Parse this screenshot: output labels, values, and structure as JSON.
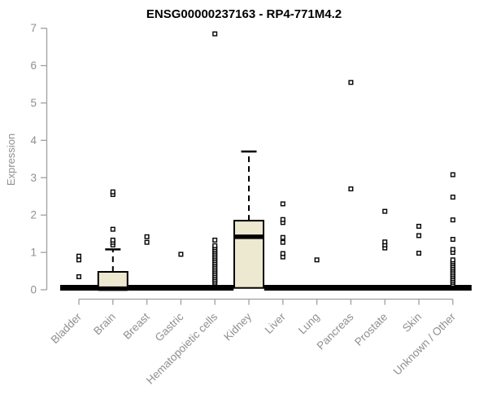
{
  "colors": {
    "box_fill": "#ede8d0",
    "box_stroke": "#000000",
    "axis_line": "#a0a0a0",
    "tick_text": "#8f8f8f",
    "title_text": "#000000",
    "outlier_fill": "#ffffff"
  },
  "chart_data": {
    "type": "boxplot",
    "title": "ENSG00000237163 - RP4-771M4.2",
    "xlabel": "",
    "ylabel": "Expression",
    "ylim": [
      0,
      7
    ],
    "yticks": [
      0,
      1,
      2,
      3,
      4,
      5,
      6,
      7
    ],
    "grid": false,
    "legend": null,
    "categories": [
      "Bladder",
      "Brain",
      "Breast",
      "Gastric",
      "Hematopoietic cells",
      "Kidney",
      "Liver",
      "Lung",
      "Pancreas",
      "Prostate",
      "Skin",
      "Unknown / Other"
    ],
    "boxes": [
      {
        "category": "Bladder",
        "q1": 0,
        "median": 0,
        "q3": 0,
        "whisker_low": 0,
        "whisker_high": 0,
        "outliers": [
          0.35,
          0.8,
          0.9
        ]
      },
      {
        "category": "Brain",
        "q1": 0,
        "median": 0.03,
        "q3": 0.48,
        "whisker_low": 0,
        "whisker_high": 1.08,
        "outliers": [
          1.2,
          1.27,
          1.33,
          1.62,
          2.55,
          2.62
        ]
      },
      {
        "category": "Breast",
        "q1": 0,
        "median": 0,
        "q3": 0,
        "whisker_low": 0,
        "whisker_high": 0,
        "outliers": [
          1.27,
          1.42
        ]
      },
      {
        "category": "Gastric",
        "q1": 0,
        "median": 0,
        "q3": 0,
        "whisker_low": 0,
        "whisker_high": 0,
        "outliers": [
          0.95
        ]
      },
      {
        "category": "Hematopoietic cells",
        "q1": 0,
        "median": 0,
        "q3": 0,
        "whisker_low": 0,
        "whisker_high": 0,
        "outliers": [
          0.18,
          0.23,
          0.28,
          0.33,
          0.38,
          0.43,
          0.48,
          0.53,
          0.58,
          0.63,
          0.68,
          0.73,
          0.78,
          0.83,
          0.88,
          0.93,
          0.98,
          1.03,
          1.08,
          1.13,
          1.18,
          1.33,
          6.85
        ]
      },
      {
        "category": "Kidney",
        "q1": 0.05,
        "median": 1.42,
        "q3": 1.85,
        "whisker_low": 0.05,
        "whisker_high": 3.7,
        "outliers": []
      },
      {
        "category": "Liver",
        "q1": 0,
        "median": 0,
        "q3": 0,
        "whisker_low": 0,
        "whisker_high": 0,
        "outliers": [
          0.88,
          0.97,
          1.27,
          1.4,
          1.8,
          1.88,
          2.3
        ]
      },
      {
        "category": "Lung",
        "q1": 0,
        "median": 0,
        "q3": 0,
        "whisker_low": 0,
        "whisker_high": 0,
        "outliers": [
          0.8
        ]
      },
      {
        "category": "Pancreas",
        "q1": 0,
        "median": 0,
        "q3": 0,
        "whisker_low": 0,
        "whisker_high": 0,
        "outliers": [
          2.7,
          5.55
        ]
      },
      {
        "category": "Prostate",
        "q1": 0,
        "median": 0,
        "q3": 0,
        "whisker_low": 0,
        "whisker_high": 0,
        "outliers": [
          1.12,
          1.2,
          1.28,
          2.1
        ]
      },
      {
        "category": "Skin",
        "q1": 0,
        "median": 0,
        "q3": 0,
        "whisker_low": 0,
        "whisker_high": 0,
        "outliers": [
          0.98,
          1.45,
          1.7
        ]
      },
      {
        "category": "Unknown / Other",
        "q1": 0,
        "median": 0,
        "q3": 0,
        "whisker_low": 0,
        "whisker_high": 0,
        "outliers": [
          0.15,
          0.2,
          0.25,
          0.3,
          0.35,
          0.4,
          0.45,
          0.5,
          0.55,
          0.6,
          0.65,
          0.7,
          0.75,
          0.8,
          1.0,
          1.08,
          1.35,
          1.87,
          2.48,
          3.08
        ]
      }
    ]
  }
}
